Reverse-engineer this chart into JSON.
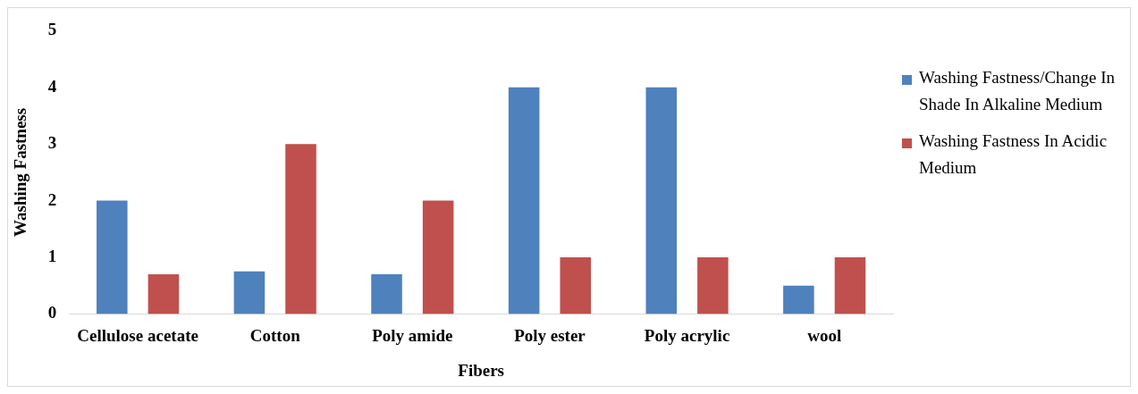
{
  "chart_data": {
    "type": "bar",
    "xlabel": "Fibers",
    "ylabel": "Washing Fastness",
    "categories": [
      "Cellulose acetate",
      "Cotton",
      "Poly amide",
      "Poly ester",
      "Poly acrylic",
      "wool"
    ],
    "series": [
      {
        "name": "Washing Fastness/Change In Shade In Alkaline Medium",
        "color": "#4f81bd",
        "values": [
          2,
          0.75,
          0.7,
          4,
          4,
          0.5
        ]
      },
      {
        "name": "Washing Fastness In Acidic Medium",
        "color": "#c0504d",
        "values": [
          0.7,
          3,
          2,
          1,
          1,
          1
        ]
      }
    ],
    "ylim": [
      0,
      5
    ],
    "yticks": [
      0,
      1,
      2,
      3,
      4,
      5
    ],
    "grid": false,
    "legend": "right"
  }
}
